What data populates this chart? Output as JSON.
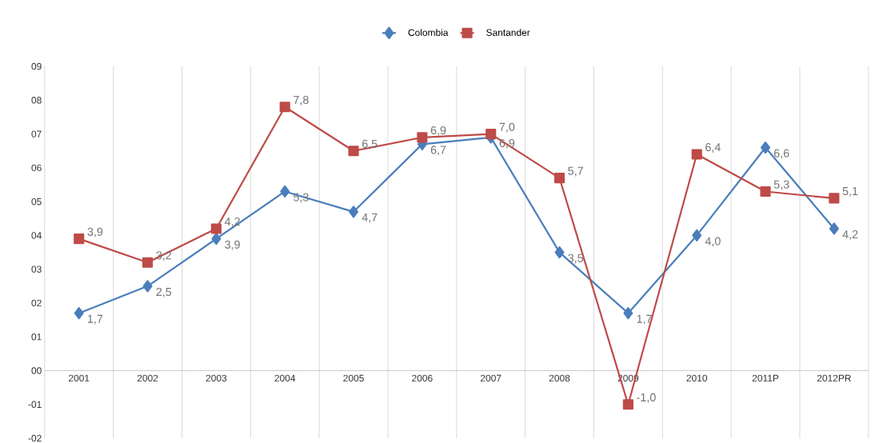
{
  "chart_data": {
    "type": "line",
    "categories": [
      "2001",
      "2002",
      "2003",
      "2004",
      "2005",
      "2006",
      "2007",
      "2008",
      "2009",
      "2010",
      "2011P",
      "2012PR"
    ],
    "series": [
      {
        "name": "Colombia",
        "color": "#4a7ebb",
        "marker": "diamond",
        "values": [
          1.7,
          2.5,
          3.9,
          5.3,
          4.7,
          6.7,
          6.9,
          3.5,
          1.7,
          4.0,
          6.6,
          4.2
        ],
        "value_labels": [
          "1,7",
          "2,5",
          "3,9",
          "5,3",
          "4,7",
          "6,7",
          "6,9",
          "3,5",
          "1,7",
          "4,0",
          "6,6",
          "4,2"
        ]
      },
      {
        "name": "Santander",
        "color": "#be4b48",
        "marker": "square",
        "values": [
          3.9,
          3.2,
          4.2,
          7.8,
          6.5,
          6.9,
          7.0,
          5.7,
          -1.0,
          6.4,
          5.3,
          5.1
        ],
        "value_labels": [
          "3,9",
          "3,2",
          "4,2",
          "7,8",
          "6,5",
          "6,9",
          "7,0",
          "5,7",
          "-1,0",
          "6,4",
          "5,3",
          "5,1"
        ]
      }
    ],
    "ylim": [
      -2,
      9
    ],
    "yticks": [
      {
        "value": -2,
        "label": "-02"
      },
      {
        "value": -1,
        "label": "-01"
      },
      {
        "value": 0,
        "label": "00"
      },
      {
        "value": 1,
        "label": "01"
      },
      {
        "value": 2,
        "label": "02"
      },
      {
        "value": 3,
        "label": "03"
      },
      {
        "value": 4,
        "label": "04"
      },
      {
        "value": 5,
        "label": "05"
      },
      {
        "value": 6,
        "label": "06"
      },
      {
        "value": 7,
        "label": "07"
      },
      {
        "value": 8,
        "label": "08"
      },
      {
        "value": 9,
        "label": "09"
      }
    ],
    "grid": "x",
    "legend": "top",
    "line_style": "solid"
  }
}
